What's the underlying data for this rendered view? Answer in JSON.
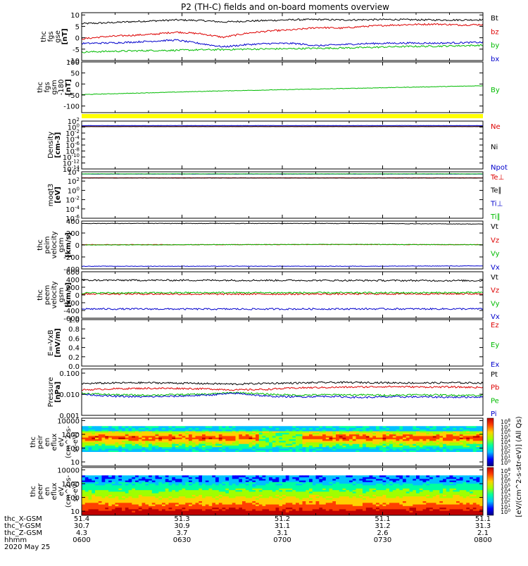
{
  "title": "P2 (TH-C) fields and on-board moments overview",
  "footer": {
    "row_labels": [
      "thc_X-GSM",
      "thc_Y-GSM",
      "thc_Z-GSM",
      "hhmm",
      "2020 May 25"
    ],
    "columns": [
      {
        "x": "51.4",
        "y": "30.7",
        "z": "4.3",
        "t": "0600"
      },
      {
        "x": "51.3",
        "y": "30.9",
        "z": "3.7",
        "t": "0630"
      },
      {
        "x": "51.2",
        "y": "31.1",
        "z": "3.1",
        "t": "0700"
      },
      {
        "x": "51.1",
        "y": "31.2",
        "z": "2.6",
        "t": "0730"
      },
      {
        "x": "51.1",
        "y": "31.3",
        "z": "2.1",
        "t": "0800"
      }
    ]
  },
  "colorbar": {
    "title": "[eV/(cm^2-s-str-eV)] (All Qs)",
    "ticks": [
      "10^8",
      "10^7",
      "10^6",
      "10^5",
      "10^4",
      "10^3",
      "10^2",
      "10^1",
      "10^0"
    ]
  },
  "chart_data": [
    {
      "type": "line",
      "ylabel": [
        "thc",
        "fgs",
        "gse",
        "[nT]"
      ],
      "ylim": [
        -10,
        11
      ],
      "yticks": [
        "10",
        "5",
        "0",
        "-5",
        "-10"
      ],
      "series": [
        {
          "name": "Bt",
          "color": "#000000",
          "values": [
            6.2,
            6.5,
            7.0,
            7.4,
            7.8,
            7.6,
            6.9,
            7.3,
            7.6,
            7.9,
            8.0,
            7.8,
            7.9,
            8.0,
            7.9,
            7.8,
            7.8,
            7.9
          ]
        },
        {
          "name": "bz",
          "color": "#dd0000",
          "values": [
            -0.5,
            0.5,
            1.0,
            1.5,
            2.5,
            1.8,
            0.2,
            2.0,
            3.0,
            3.5,
            4.5,
            4.2,
            5.0,
            5.5,
            5.8,
            6.0,
            5.6,
            5.8
          ]
        },
        {
          "name": "by",
          "color": "#00bb00",
          "values": [
            -6.3,
            -6.0,
            -5.8,
            -5.6,
            -5.5,
            -5.3,
            -5.2,
            -5.0,
            -4.9,
            -4.8,
            -4.6,
            -4.5,
            -4.3,
            -4.0,
            -3.8,
            -3.7,
            -3.5,
            -3.3
          ]
        },
        {
          "name": "bx",
          "color": "#0000cc",
          "values": [
            -2.5,
            -2.3,
            -2.0,
            -1.5,
            -1.0,
            -2.5,
            -4.0,
            -3.0,
            -2.5,
            -2.5,
            -3.5,
            -3.0,
            -2.6,
            -2.4,
            -2.3,
            -2.4,
            -2.2,
            -2.0
          ]
        }
      ]
    },
    {
      "type": "line",
      "ylabel": [
        "thc",
        "fgs",
        "gsm",
        "-180",
        "[nT]"
      ],
      "ylim": [
        -130,
        100
      ],
      "yticks": [
        "100",
        "50",
        "0",
        "-50",
        "-100"
      ],
      "series": [
        {
          "name": "By",
          "color": "#00bb00",
          "values": [
            -48,
            -44,
            -40,
            -36,
            -32,
            -29,
            -26,
            -23,
            -20,
            -17,
            -14,
            -11,
            -8
          ]
        }
      ]
    },
    {
      "type": "line",
      "ylabel": [
        "Density",
        "[cm-3]"
      ],
      "ylim": [
        -14,
        2
      ],
      "log": true,
      "yticks": [
        "10^2",
        "10^0",
        "10^-2",
        "10^-4",
        "10^-6",
        "10^-8",
        "10^-10",
        "10^-12",
        "10^-14"
      ],
      "series": [
        {
          "name": "Ne",
          "color": "#dd0000",
          "values": [
            0.2
          ]
        },
        {
          "name": "Ni",
          "color": "#000000",
          "values": [
            0.15
          ]
        },
        {
          "name": "Npot",
          "color": "#0000cc",
          "values": [
            0.5
          ]
        }
      ]
    },
    {
      "type": "line",
      "ylabel": [
        "moqt3",
        "[eV]"
      ],
      "ylim": [
        -6,
        4
      ],
      "log": true,
      "yticks": [
        "10^4",
        "10^2",
        "10^0",
        "10^-2",
        "10^-4",
        "10^-6"
      ],
      "series": [
        {
          "name": "Te⊥",
          "color": "#dd0000",
          "values": [
            2.7
          ]
        },
        {
          "name": "Te∥",
          "color": "#000000",
          "values": [
            2.65
          ]
        },
        {
          "name": "Ti⊥",
          "color": "#0000cc",
          "values": [
            3.5
          ]
        },
        {
          "name": "Ti∥",
          "color": "#00bb00",
          "values": [
            3.55
          ]
        }
      ]
    },
    {
      "type": "line",
      "ylabel": [
        "thc",
        "peim",
        "velocity",
        "gsm",
        "[km/s]"
      ],
      "ylim": [
        -400,
        400
      ],
      "yticks": [
        "400",
        "200",
        "0",
        "-200",
        "-400"
      ],
      "series": [
        {
          "name": "Vt",
          "color": "#000000",
          "values": [
            360,
            360,
            360,
            350
          ]
        },
        {
          "name": "Vz",
          "color": "#dd0000",
          "values": [
            5,
            5,
            8,
            5
          ]
        },
        {
          "name": "Vy",
          "color": "#00bb00",
          "values": [
            0,
            5,
            10,
            5
          ]
        },
        {
          "name": "Vx",
          "color": "#0000cc",
          "values": [
            -355,
            -355,
            -355,
            -350
          ]
        }
      ]
    },
    {
      "type": "line",
      "ylabel": [
        "thc",
        "peem",
        "velocity",
        "gsm",
        "[km/s]"
      ],
      "ylim": [
        -600,
        600
      ],
      "yticks": [
        "600",
        "400",
        "200",
        "0",
        "-200",
        "-400",
        "-600"
      ],
      "series": [
        {
          "name": "Vt",
          "color": "#000000",
          "values": [
            380,
            380,
            375,
            370
          ]
        },
        {
          "name": "Vz",
          "color": "#dd0000",
          "values": [
            30,
            20,
            25,
            30
          ]
        },
        {
          "name": "Vy",
          "color": "#00bb00",
          "values": [
            50,
            60,
            55,
            60
          ]
        },
        {
          "name": "Vx",
          "color": "#0000cc",
          "values": [
            -360,
            -365,
            -360,
            -360
          ]
        }
      ]
    },
    {
      "type": "line",
      "ylabel": [
        "E=-VxB",
        "[mV/m]"
      ],
      "ylim": [
        0,
        1
      ],
      "yticks": [
        "1.0",
        "0.8",
        "0.6",
        "0.4",
        "0.2",
        "0.0"
      ],
      "series": [
        {
          "name": "Ez",
          "color": "#dd0000",
          "values": []
        },
        {
          "name": "Ey",
          "color": "#00bb00",
          "values": []
        },
        {
          "name": "Ex",
          "color": "#0000cc",
          "values": []
        }
      ]
    },
    {
      "type": "line",
      "ylabel": [
        "Pressure",
        "[nPa]"
      ],
      "ylim": [
        -3,
        -0.8
      ],
      "log": true,
      "yticks": [
        "0.100",
        "0.010",
        "0.001"
      ],
      "series": [
        {
          "name": "Pt",
          "color": "#000000",
          "values": [
            0.032,
            0.034,
            0.035,
            0.034,
            0.032,
            0.03,
            0.033,
            0.034,
            0.036,
            0.036,
            0.035,
            0.034,
            0.035,
            0.034
          ]
        },
        {
          "name": "Pb",
          "color": "#dd0000",
          "values": [
            0.016,
            0.018,
            0.019,
            0.019,
            0.018,
            0.016,
            0.017,
            0.02,
            0.021,
            0.022,
            0.023,
            0.022,
            0.022,
            0.021
          ]
        },
        {
          "name": "Pe",
          "color": "#00bb00",
          "values": [
            0.011,
            0.0095,
            0.009,
            0.0095,
            0.01,
            0.012,
            0.01,
            0.009,
            0.0095,
            0.0093,
            0.009,
            0.0095,
            0.009,
            0.009
          ]
        },
        {
          "name": "Pi",
          "color": "#0000cc",
          "values": [
            0.01,
            0.008,
            0.0075,
            0.008,
            0.009,
            0.011,
            0.008,
            0.0075,
            0.008,
            0.007,
            0.0075,
            0.0075,
            0.0072,
            0.0075
          ]
        }
      ]
    },
    {
      "type": "heatmap",
      "ylabel": [
        "thc",
        "peir",
        "en",
        "eflux",
        "eV",
        "(cm^2-s-",
        "sr-eV)"
      ],
      "ylim": [
        5,
        15000
      ],
      "log": true,
      "yticks": [
        "10000",
        "1000",
        "100",
        "10"
      ]
    },
    {
      "type": "heatmap",
      "ylabel": [
        "thc",
        "peer",
        "en",
        "eflux",
        "eV",
        "(cm^2-s-",
        "sr-eV)"
      ],
      "ylim": [
        5,
        15000
      ],
      "log": true,
      "yticks": [
        "10000",
        "1000",
        "100",
        "10"
      ]
    }
  ]
}
